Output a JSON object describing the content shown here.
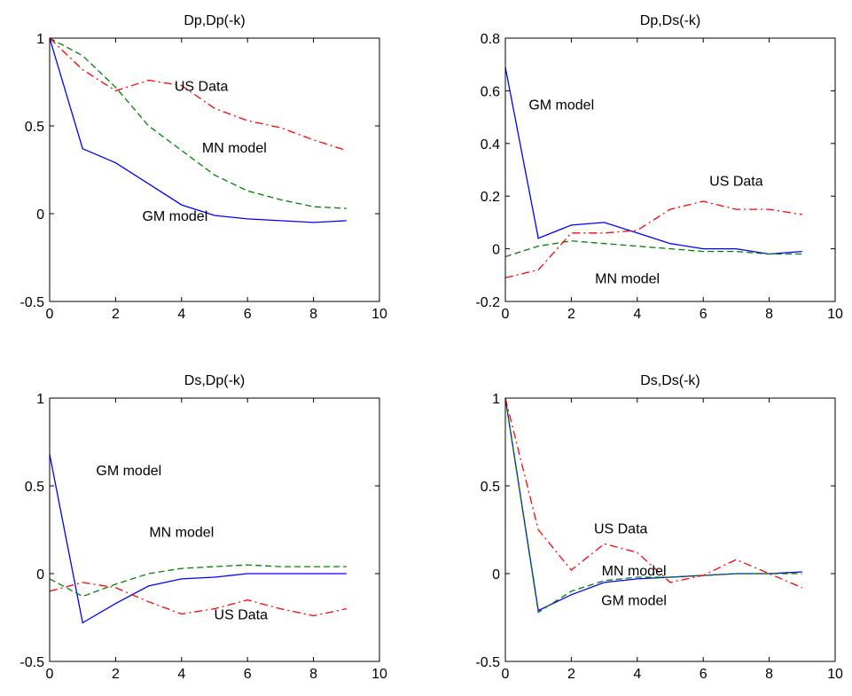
{
  "chart_data": [
    {
      "type": "line",
      "title": "Dp,Dp(-k)",
      "xlim": [
        0,
        10
      ],
      "ylim": [
        -0.5,
        1
      ],
      "xticks": [
        0,
        2,
        4,
        6,
        8,
        10
      ],
      "xtick_labels": [
        "0",
        "2",
        "4",
        "6",
        "8",
        "10"
      ],
      "yticks": [
        1,
        0.5,
        0,
        -0.5
      ],
      "ytick_labels": [
        "1",
        "0.5",
        "0",
        "-0.5"
      ],
      "x": [
        0,
        1,
        2,
        3,
        4,
        5,
        6,
        7,
        8,
        9
      ],
      "series": [
        {
          "name": "GM model",
          "color": "#0000ff",
          "dash": "solid",
          "values": [
            1.0,
            0.37,
            0.29,
            0.17,
            0.05,
            -0.01,
            -0.03,
            -0.04,
            -0.05,
            -0.04
          ]
        },
        {
          "name": "MN model",
          "color": "#008000",
          "dash": "dashed",
          "values": [
            1.0,
            0.9,
            0.72,
            0.5,
            0.36,
            0.22,
            0.13,
            0.08,
            0.04,
            0.03
          ]
        },
        {
          "name": "US Data",
          "color": "#ff0000",
          "dash": "dashdot",
          "values": [
            1.0,
            0.82,
            0.7,
            0.76,
            0.73,
            0.6,
            0.53,
            0.49,
            0.42,
            0.36
          ]
        }
      ],
      "annotations": [
        {
          "text": "US Data",
          "x": 4.6,
          "y": 0.73
        },
        {
          "text": "MN model",
          "x": 5.6,
          "y": 0.38
        },
        {
          "text": "GM model",
          "x": 3.8,
          "y": -0.01
        }
      ]
    },
    {
      "type": "line",
      "title": "Dp,Ds(-k)",
      "xlim": [
        0,
        10
      ],
      "ylim": [
        -0.2,
        0.8
      ],
      "xticks": [
        0,
        2,
        4,
        6,
        8,
        10
      ],
      "xtick_labels": [
        "0",
        "2",
        "4",
        "6",
        "8",
        "10"
      ],
      "yticks": [
        0.8,
        0.6,
        0.4,
        0.2,
        0,
        -0.2
      ],
      "ytick_labels": [
        "0.8",
        "0.6",
        "0.4",
        "0.2",
        "0",
        "-0.2"
      ],
      "x": [
        0,
        1,
        2,
        3,
        4,
        5,
        6,
        7,
        8,
        9
      ],
      "series": [
        {
          "name": "GM model",
          "color": "#0000ff",
          "dash": "solid",
          "values": [
            0.69,
            0.04,
            0.09,
            0.1,
            0.06,
            0.02,
            0.0,
            0.0,
            -0.02,
            -0.01
          ]
        },
        {
          "name": "MN model",
          "color": "#008000",
          "dash": "dashed",
          "values": [
            -0.03,
            0.01,
            0.03,
            0.02,
            0.01,
            0.0,
            -0.01,
            -0.01,
            -0.02,
            -0.02
          ]
        },
        {
          "name": "US Data",
          "color": "#ff0000",
          "dash": "dashdot",
          "values": [
            -0.11,
            -0.08,
            0.06,
            0.06,
            0.07,
            0.15,
            0.18,
            0.15,
            0.15,
            0.13
          ]
        }
      ],
      "annotations": [
        {
          "text": "GM model",
          "x": 1.7,
          "y": 0.55
        },
        {
          "text": "US Data",
          "x": 7.0,
          "y": 0.26
        },
        {
          "text": "MN model",
          "x": 3.7,
          "y": -0.11
        }
      ]
    },
    {
      "type": "line",
      "title": "Ds,Dp(-k)",
      "xlim": [
        0,
        10
      ],
      "ylim": [
        -0.5,
        1
      ],
      "xticks": [
        0,
        2,
        4,
        6,
        8,
        10
      ],
      "xtick_labels": [
        "0",
        "2",
        "4",
        "6",
        "8",
        "10"
      ],
      "yticks": [
        1,
        0.5,
        0,
        -0.5
      ],
      "ytick_labels": [
        "1",
        "0.5",
        "0",
        "-0.5"
      ],
      "x": [
        0,
        1,
        2,
        3,
        4,
        5,
        6,
        7,
        8,
        9
      ],
      "series": [
        {
          "name": "GM model",
          "color": "#0000ff",
          "dash": "solid",
          "values": [
            0.68,
            -0.28,
            -0.17,
            -0.07,
            -0.03,
            -0.02,
            0.0,
            0.0,
            0.0,
            0.0
          ]
        },
        {
          "name": "MN model",
          "color": "#008000",
          "dash": "dashed",
          "values": [
            -0.03,
            -0.13,
            -0.06,
            0.0,
            0.03,
            0.04,
            0.05,
            0.04,
            0.04,
            0.04
          ]
        },
        {
          "name": "US Data",
          "color": "#ff0000",
          "dash": "dashdot",
          "values": [
            -0.1,
            -0.05,
            -0.08,
            -0.16,
            -0.23,
            -0.2,
            -0.15,
            -0.2,
            -0.24,
            -0.2
          ]
        }
      ],
      "annotations": [
        {
          "text": "GM model",
          "x": 2.4,
          "y": 0.59
        },
        {
          "text": "MN model",
          "x": 4.0,
          "y": 0.24
        },
        {
          "text": "US Data",
          "x": 5.8,
          "y": -0.23
        }
      ]
    },
    {
      "type": "line",
      "title": "Ds,Ds(-k)",
      "xlim": [
        0,
        10
      ],
      "ylim": [
        -0.5,
        1
      ],
      "xticks": [
        0,
        2,
        4,
        6,
        8,
        10
      ],
      "xtick_labels": [
        "0",
        "2",
        "4",
        "6",
        "8",
        "10"
      ],
      "yticks": [
        1,
        0.5,
        0,
        -0.5
      ],
      "ytick_labels": [
        "1",
        "0.5",
        "0",
        "-0.5"
      ],
      "x": [
        0,
        1,
        2,
        3,
        4,
        5,
        6,
        7,
        8,
        9
      ],
      "series": [
        {
          "name": "GM model",
          "color": "#0000ff",
          "dash": "solid",
          "values": [
            1.0,
            -0.21,
            -0.12,
            -0.05,
            -0.03,
            -0.02,
            -0.01,
            0.0,
            0.0,
            0.01
          ]
        },
        {
          "name": "MN model",
          "color": "#008000",
          "dash": "dashed",
          "values": [
            1.0,
            -0.22,
            -0.1,
            -0.04,
            -0.02,
            -0.02,
            -0.01,
            0.0,
            0.0,
            0.0
          ]
        },
        {
          "name": "US Data",
          "color": "#ff0000",
          "dash": "dashdot",
          "values": [
            1.0,
            0.25,
            0.02,
            0.17,
            0.12,
            -0.05,
            -0.01,
            0.08,
            0.0,
            -0.08
          ]
        }
      ],
      "annotations": [
        {
          "text": "US Data",
          "x": 3.5,
          "y": 0.26
        },
        {
          "text": "MN model",
          "x": 3.9,
          "y": 0.02
        },
        {
          "text": "GM model",
          "x": 3.9,
          "y": -0.15
        }
      ]
    }
  ]
}
